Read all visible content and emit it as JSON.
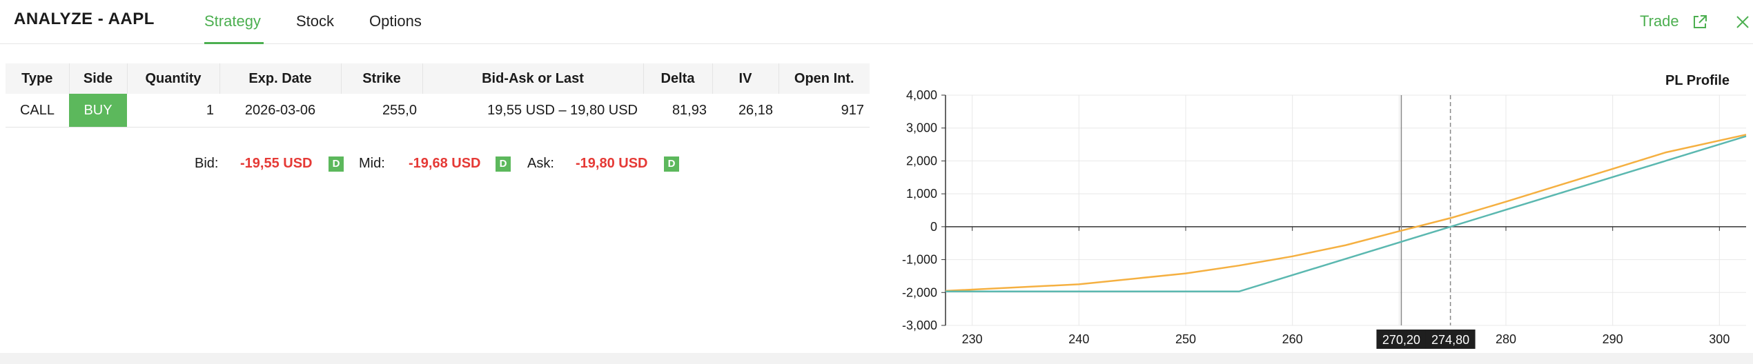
{
  "header": {
    "title": "ANALYZE - AAPL",
    "tabs": [
      {
        "label": "Strategy",
        "active": true
      },
      {
        "label": "Stock",
        "active": false
      },
      {
        "label": "Options",
        "active": false
      }
    ],
    "trade_label": "Trade",
    "icons": [
      "external-link-icon",
      "close-icon"
    ],
    "accent_color": "#4caf50"
  },
  "table": {
    "columns": [
      "Type",
      "Side",
      "Quantity",
      "Exp. Date",
      "Strike",
      "Bid-Ask or Last",
      "Delta",
      "IV",
      "Open Int."
    ],
    "rows": [
      {
        "type": "CALL",
        "side": "BUY",
        "quantity": "1",
        "exp_date": "2026-03-06",
        "strike": "255,0",
        "bid_ask": "19,55 USD – 19,80 USD",
        "delta": "81,93",
        "iv": "26,18",
        "open_int": "917"
      }
    ]
  },
  "quotes": {
    "bid_label": "Bid:",
    "bid_value": "-19,55 USD",
    "mid_label": "Mid:",
    "mid_value": "-19,68 USD",
    "ask_label": "Ask:",
    "ask_value": "-19,80 USD",
    "badge": "D"
  },
  "chart_data": {
    "type": "line",
    "title": "PL Profile",
    "xlim": [
      227.5,
      302.5
    ],
    "ylim": [
      -3000,
      4000
    ],
    "x_ticks": [
      230,
      240,
      250,
      260,
      270,
      280,
      290,
      300
    ],
    "y_ticks": [
      4000,
      3000,
      2000,
      1000,
      0,
      -1000,
      -2000,
      -3000
    ],
    "x_tick_labels": [
      "230",
      "240",
      "250",
      "260",
      "270",
      "280",
      "290",
      "300"
    ],
    "y_tick_labels": [
      "4,000",
      "3,000",
      "2,000",
      "1,000",
      "0",
      "-1,000",
      "-2,000",
      "-3,000"
    ],
    "grid": true,
    "series": [
      {
        "color": "#f5b041",
        "x": [
          227.5,
          240,
          250,
          255,
          260,
          265,
          270.2,
          275,
          280,
          285,
          290,
          295,
          302.5
        ],
        "y": [
          -1950,
          -1750,
          -1420,
          -1180,
          -900,
          -560,
          -120,
          280,
          760,
          1260,
          1760,
          2260,
          2800
        ]
      },
      {
        "color": "#5bb8b0",
        "x": [
          227.5,
          255,
          274.8,
          302.5
        ],
        "y": [
          -1968,
          -1968,
          0,
          2750
        ]
      }
    ],
    "markers": [
      {
        "x": 270.2,
        "label": "270,20",
        "style": "solid"
      },
      {
        "x": 274.8,
        "label": "274,80",
        "style": "dashed"
      }
    ]
  }
}
